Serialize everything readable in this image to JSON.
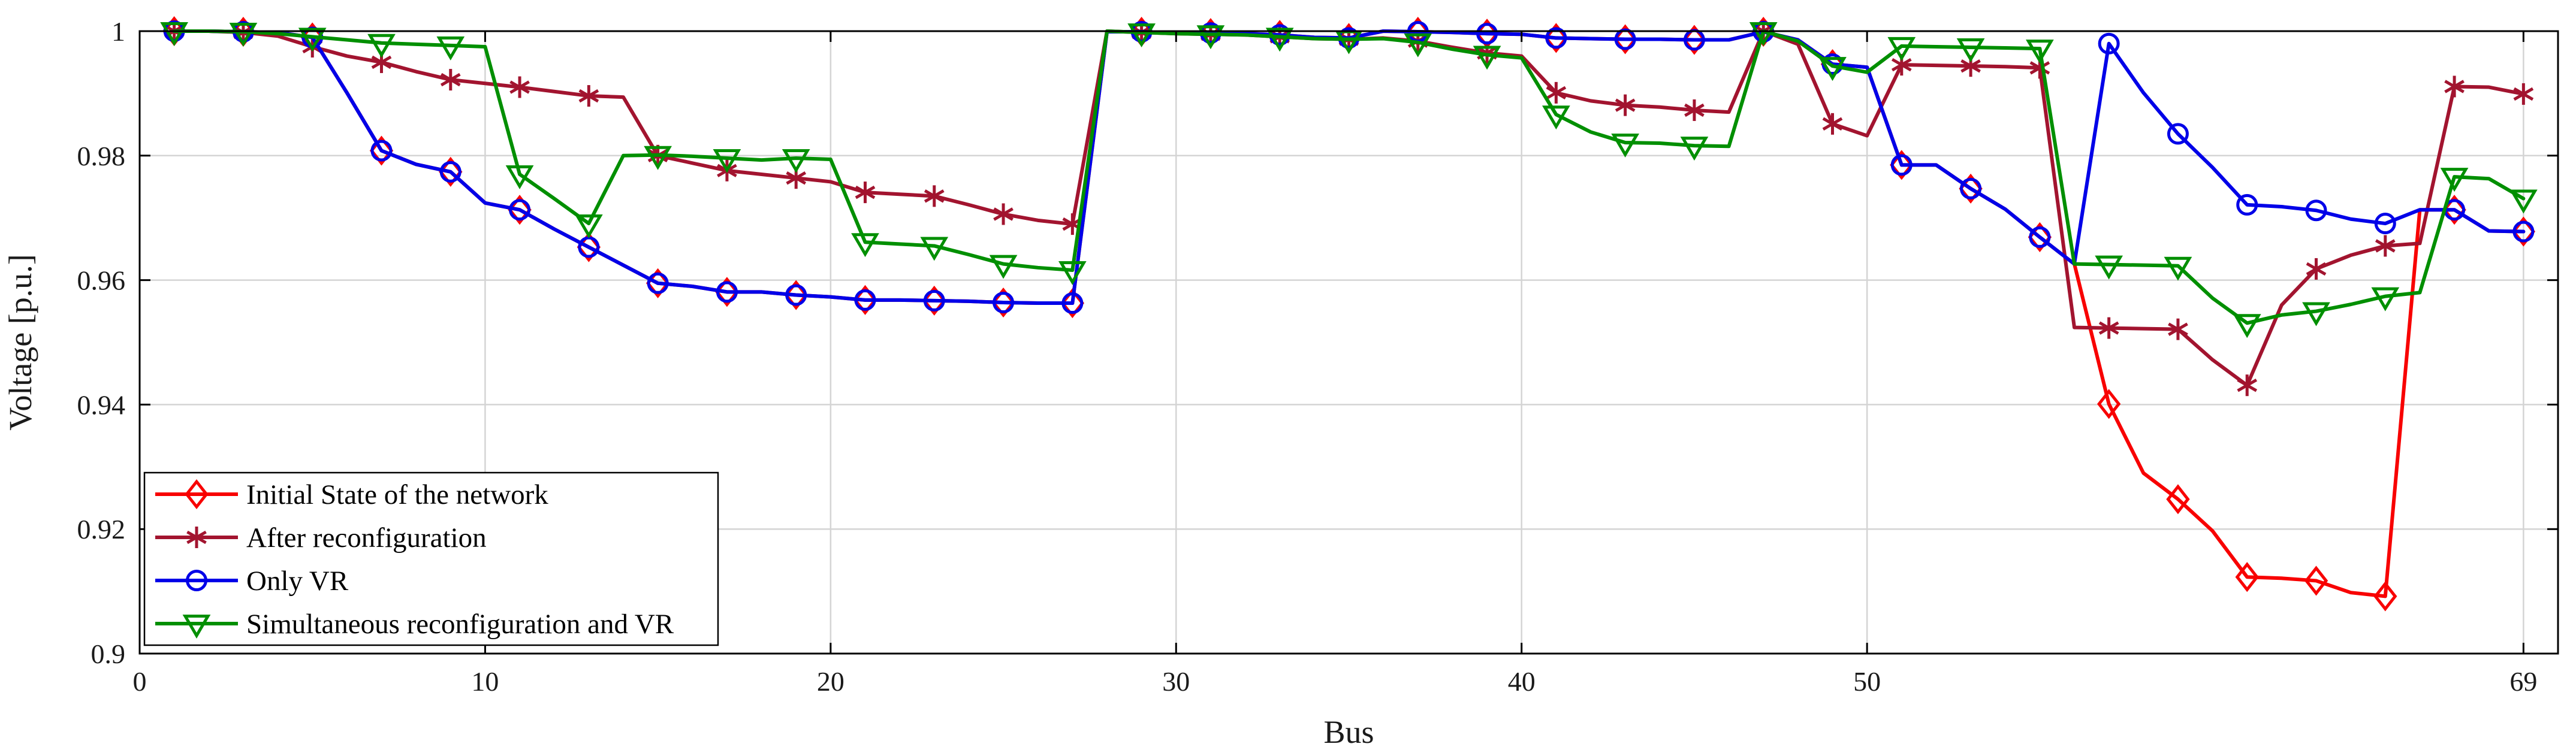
{
  "figure": {
    "background": "#ffffff",
    "kind": "matlab-style voltage profile plot"
  },
  "chart_data": {
    "type": "line",
    "title": "",
    "xlabel": "Bus",
    "ylabel": "Voltage [p.u.]",
    "xlim": [
      0,
      70
    ],
    "ylim": [
      0.9,
      1.0
    ],
    "xticks": [
      0,
      10,
      20,
      30,
      40,
      50,
      69
    ],
    "xtick_labels": [
      "0",
      "10",
      "20",
      "30",
      "40",
      "50",
      "69"
    ],
    "yticks": [
      0.9,
      0.92,
      0.94,
      0.96,
      0.98,
      1.0
    ],
    "ytick_labels": [
      "0.9",
      "0.92",
      "0.94",
      "0.96",
      "0.98",
      "1"
    ],
    "grid": true,
    "grid_color": "#d4d4d4",
    "axis_color": "#000000",
    "tick_label_color": "#1a1a1a",
    "legend_position": "lower-left",
    "marker_every": 2,
    "x": [
      1,
      2,
      3,
      4,
      5,
      6,
      7,
      8,
      9,
      10,
      11,
      12,
      13,
      14,
      15,
      16,
      17,
      18,
      19,
      20,
      21,
      22,
      23,
      24,
      25,
      26,
      27,
      28,
      29,
      30,
      31,
      32,
      33,
      34,
      35,
      36,
      37,
      38,
      39,
      40,
      41,
      42,
      43,
      44,
      45,
      46,
      47,
      48,
      49,
      50,
      51,
      52,
      53,
      54,
      55,
      56,
      57,
      58,
      59,
      60,
      61,
      62,
      63,
      64,
      65,
      66,
      67,
      68,
      69
    ],
    "series": [
      {
        "name": "Initial State of the network",
        "color": "#F80000",
        "marker": "diamond",
        "values": [
          1.0,
          1.0,
          0.9999,
          0.9998,
          0.999,
          0.9901,
          0.9808,
          0.9786,
          0.9774,
          0.9724,
          0.9713,
          0.9682,
          0.9653,
          0.9624,
          0.9595,
          0.959,
          0.9581,
          0.9581,
          0.9576,
          0.9573,
          0.9568,
          0.9568,
          0.9567,
          0.9566,
          0.9564,
          0.9563,
          0.9563,
          0.9999,
          0.9999,
          0.9997,
          0.9997,
          0.9996,
          0.9994,
          0.999,
          0.9989,
          1.0,
          0.9999,
          0.9998,
          0.9996,
          0.9995,
          0.9989,
          0.9988,
          0.9987,
          0.9987,
          0.9986,
          0.9986,
          0.9999,
          0.9986,
          0.9947,
          0.9942,
          0.9785,
          0.9785,
          0.9747,
          0.9714,
          0.9669,
          0.9626,
          0.9401,
          0.929,
          0.9248,
          0.9197,
          0.9123,
          0.9121,
          0.9117,
          0.9098,
          0.9092,
          0.9713,
          0.9713,
          0.9679,
          0.9678
        ]
      },
      {
        "name": "After reconfiguration",
        "color": "#A2142F",
        "marker": "asterisk",
        "values": [
          1.0,
          1.0,
          0.9998,
          0.9992,
          0.9975,
          0.996,
          0.995,
          0.9935,
          0.9922,
          0.9916,
          0.991,
          0.9903,
          0.9896,
          0.9894,
          0.98,
          0.9788,
          0.9776,
          0.977,
          0.9764,
          0.9758,
          0.9741,
          0.9738,
          0.9735,
          0.9721,
          0.9706,
          0.9696,
          0.969,
          1.0,
          0.9998,
          0.9996,
          0.9995,
          0.9994,
          0.9991,
          0.9988,
          0.9987,
          0.9989,
          0.9984,
          0.9974,
          0.9965,
          0.996,
          0.9901,
          0.9888,
          0.9881,
          0.9878,
          0.9873,
          0.987,
          1.0,
          0.9979,
          0.9851,
          0.9832,
          0.9946,
          0.9945,
          0.9944,
          0.9943,
          0.9941,
          0.9524,
          0.9523,
          0.9522,
          0.9521,
          0.9472,
          0.9431,
          0.956,
          0.9618,
          0.964,
          0.9655,
          0.9659,
          0.9911,
          0.991,
          0.9899
        ]
      },
      {
        "name": "Only VR",
        "color": "#0000E8",
        "marker": "circle",
        "values": [
          1.0,
          1.0,
          0.9999,
          0.9998,
          0.999,
          0.9901,
          0.9808,
          0.9786,
          0.9774,
          0.9724,
          0.9713,
          0.9682,
          0.9653,
          0.9624,
          0.9595,
          0.959,
          0.9581,
          0.9581,
          0.9576,
          0.9573,
          0.9568,
          0.9568,
          0.9567,
          0.9566,
          0.9564,
          0.9563,
          0.9563,
          0.9999,
          0.9999,
          0.9997,
          0.9997,
          0.9996,
          0.9994,
          0.999,
          0.9989,
          1.0,
          0.9999,
          0.9998,
          0.9996,
          0.9995,
          0.9989,
          0.9988,
          0.9987,
          0.9987,
          0.9986,
          0.9986,
          0.9999,
          0.9986,
          0.9947,
          0.9942,
          0.9785,
          0.9785,
          0.9747,
          0.9714,
          0.9669,
          0.9626,
          0.998,
          0.9901,
          0.9835,
          0.9781,
          0.9721,
          0.9718,
          0.9712,
          0.9698,
          0.9691,
          0.9713,
          0.9713,
          0.9679,
          0.9678
        ]
      },
      {
        "name": "Simultaneous reconfiguration and VR",
        "color": "#008F00",
        "marker": "triangle-down",
        "values": [
          1.0,
          1.0,
          0.9999,
          0.9996,
          0.9991,
          0.9986,
          0.9981,
          0.9979,
          0.9977,
          0.9975,
          0.977,
          0.9731,
          0.9691,
          0.98,
          0.9801,
          0.9799,
          0.9796,
          0.9793,
          0.9796,
          0.9794,
          0.9661,
          0.9658,
          0.9655,
          0.9641,
          0.9626,
          0.962,
          0.9616,
          1.0,
          0.9998,
          0.9996,
          0.9995,
          0.9994,
          0.9991,
          0.9988,
          0.9987,
          0.9988,
          0.9982,
          0.9971,
          0.9962,
          0.9957,
          0.9866,
          0.9838,
          0.9821,
          0.982,
          0.9816,
          0.9815,
          1.0,
          0.9984,
          0.9944,
          0.9934,
          0.9976,
          0.9975,
          0.9974,
          0.9973,
          0.9972,
          0.9626,
          0.9625,
          0.9624,
          0.9623,
          0.9571,
          0.9531,
          0.9544,
          0.955,
          0.9561,
          0.9574,
          0.958,
          0.9766,
          0.9763,
          0.9731
        ]
      }
    ]
  }
}
